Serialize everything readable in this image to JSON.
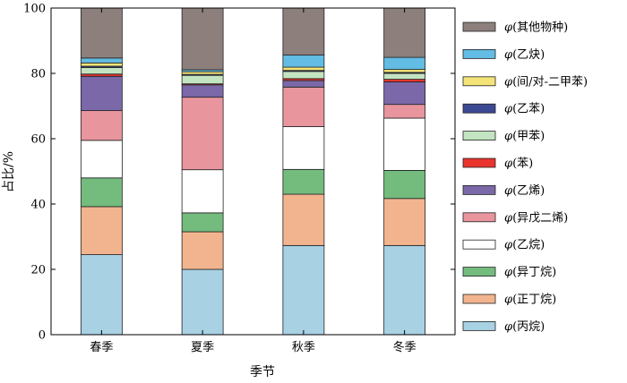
{
  "chart_data": {
    "type": "bar",
    "stacked": true,
    "xlabel": "季节",
    "ylabel": "占比/%",
    "ylim": [
      0,
      100
    ],
    "yticks": [
      0,
      20,
      40,
      60,
      80,
      100
    ],
    "categories": [
      "春季",
      "夏季",
      "秋季",
      "冬季"
    ],
    "legend_position": "right",
    "series": [
      {
        "name": "φ(丙烷)",
        "color": "#a8d1e3",
        "values": [
          24.5,
          20.0,
          27.3,
          27.3
        ]
      },
      {
        "name": "φ(正丁烷)",
        "color": "#f2b48e",
        "values": [
          14.7,
          11.5,
          15.7,
          14.4
        ]
      },
      {
        "name": "φ(异丁烷)",
        "color": "#74bb7e",
        "values": [
          8.8,
          5.8,
          7.6,
          8.6
        ]
      },
      {
        "name": "φ(乙烷)",
        "color": "#ffffff",
        "values": [
          11.5,
          13.2,
          13.1,
          16.0
        ]
      },
      {
        "name": "φ(异戊二烯)",
        "color": "#e8959e",
        "values": [
          9.1,
          22.2,
          12.1,
          4.2
        ]
      },
      {
        "name": "φ(乙烯)",
        "color": "#7a68a8",
        "values": [
          10.5,
          3.8,
          2.0,
          6.9
        ]
      },
      {
        "name": "φ(苯)",
        "color": "#e8342d",
        "values": [
          0.7,
          0.3,
          0.6,
          0.8
        ]
      },
      {
        "name": "φ(甲苯)",
        "color": "#c3e4c1",
        "values": [
          2.0,
          2.6,
          2.2,
          1.8
        ]
      },
      {
        "name": "φ(乙苯)",
        "color": "#3c4992",
        "values": [
          0.4,
          0.3,
          0.3,
          0.3
        ]
      },
      {
        "name": "φ(间/对-二甲苯)",
        "color": "#f4e477",
        "values": [
          1.0,
          0.8,
          1.0,
          0.9
        ]
      },
      {
        "name": "φ(乙炔)",
        "color": "#62bce3",
        "values": [
          1.5,
          0.6,
          3.7,
          3.7
        ]
      },
      {
        "name": "φ(其他物种)",
        "color": "#8c7f7c",
        "values": [
          15.3,
          18.9,
          14.4,
          15.1
        ]
      }
    ]
  }
}
